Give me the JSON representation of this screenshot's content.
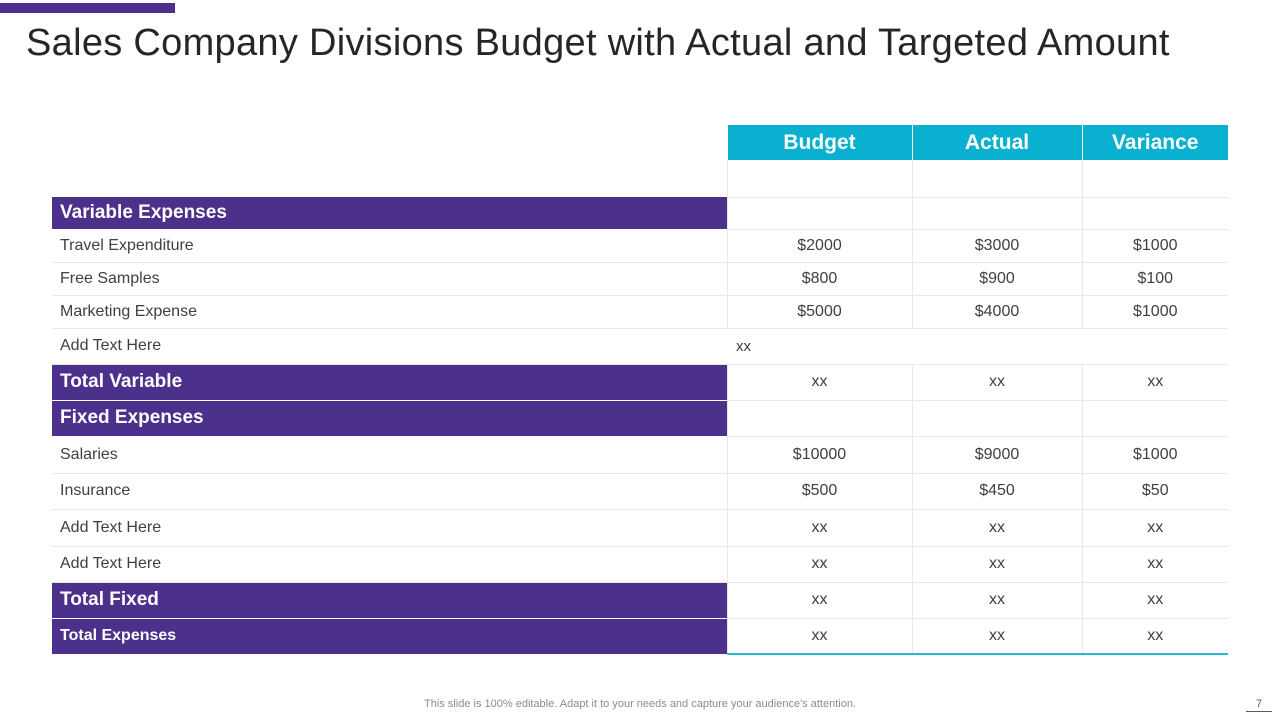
{
  "slide": {
    "title": "Sales Company Divisions Budget with Actual and Targeted Amount",
    "footer": "This slide is 100% editable. Adapt it to your needs and capture your audience's attention.",
    "page_number": "7"
  },
  "colors": {
    "section": "#4b318c",
    "header": "#0ab0cf",
    "accent_bar": "#4b318c"
  },
  "table": {
    "headers": [
      "Budget",
      "Actual",
      "Variance"
    ],
    "variable_section": "Variable Expenses",
    "variable_rows": [
      {
        "label": "Travel Expenditure",
        "budget": "$2000",
        "actual": "$3000",
        "variance": "$1000"
      },
      {
        "label": "Free Samples",
        "budget": "$800",
        "actual": "$900",
        "variance": "$100"
      },
      {
        "label": "Marketing Expense",
        "budget": "$5000",
        "actual": "$4000",
        "variance": "$1000"
      }
    ],
    "add_text_row": {
      "label": "Add Text Here",
      "note": "xx"
    },
    "total_variable": {
      "label": "Total Variable",
      "budget": "xx",
      "actual": "xx",
      "variance": "xx"
    },
    "fixed_section": "Fixed Expenses",
    "fixed_rows": [
      {
        "label": "Salaries",
        "budget": "$10000",
        "actual": "$9000",
        "variance": "$1000"
      },
      {
        "label": "Insurance",
        "budget": "$500",
        "actual": "$450",
        "variance": "$50"
      },
      {
        "label": "Add Text Here",
        "budget": "xx",
        "actual": "xx",
        "variance": "xx"
      },
      {
        "label": "Add Text Here",
        "budget": "xx",
        "actual": "xx",
        "variance": "xx"
      }
    ],
    "total_fixed": {
      "label": "Total Fixed",
      "budget": "xx",
      "actual": "xx",
      "variance": "xx"
    },
    "total_expenses": {
      "label": "Total Expenses",
      "budget": "xx",
      "actual": "xx",
      "variance": "xx"
    }
  }
}
